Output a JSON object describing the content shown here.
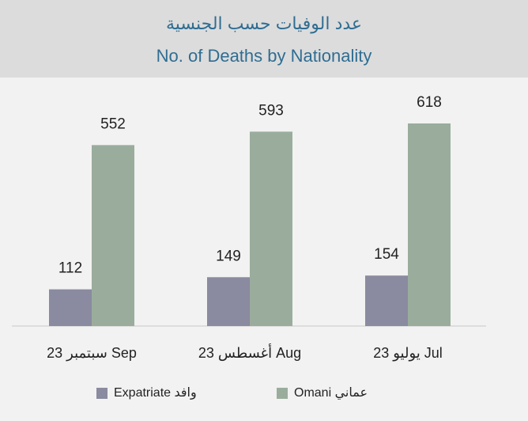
{
  "chart_data": {
    "type": "bar",
    "title": "عدد الوفيات حسب الجنسية",
    "subtitle": "No. of Deaths by Nationality",
    "categories": [
      "سبتمبر 23 Sep",
      "أغسطس 23 Aug",
      "يوليو 23 Jul"
    ],
    "series": [
      {
        "name": "وافد Expatriate",
        "color": "#8a8aa0",
        "values": [
          112,
          149,
          154
        ]
      },
      {
        "name": "عماني Omani",
        "color": "#9aad9d",
        "values": [
          552,
          593,
          618
        ]
      }
    ]
  }
}
